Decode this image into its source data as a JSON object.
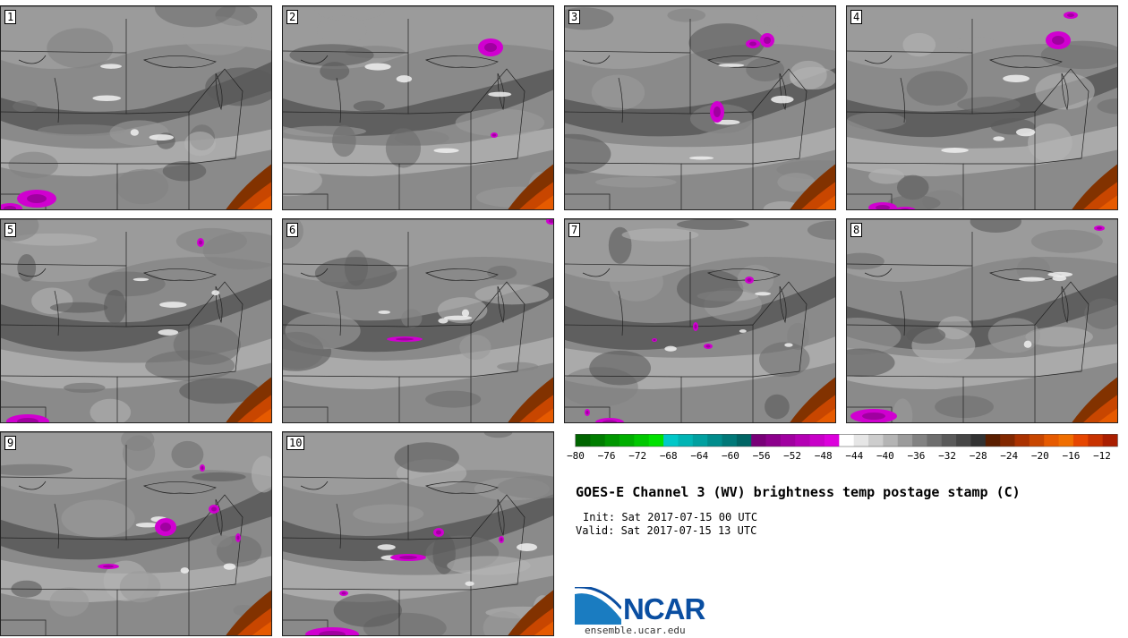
{
  "panels": [
    {
      "label": "1"
    },
    {
      "label": "2"
    },
    {
      "label": "3"
    },
    {
      "label": "4"
    },
    {
      "label": "5"
    },
    {
      "label": "6"
    },
    {
      "label": "7"
    },
    {
      "label": "8"
    },
    {
      "label": "9"
    },
    {
      "label": "10"
    }
  ],
  "colorbar": {
    "colors": [
      "#006400",
      "#007d00",
      "#009600",
      "#00af00",
      "#00c800",
      "#00e100",
      "#00c8c8",
      "#00b4b4",
      "#00a0a0",
      "#008c8c",
      "#007878",
      "#006464",
      "#780078",
      "#8c008c",
      "#a000a0",
      "#b400b4",
      "#c800c8",
      "#dc00dc",
      "#ffffff",
      "#e6e6e6",
      "#cdcdcd",
      "#b4b4b4",
      "#9b9b9b",
      "#828282",
      "#6e6e6e",
      "#5a5a5a",
      "#464646",
      "#323232",
      "#5a1e00",
      "#822800",
      "#aa3200",
      "#c84600",
      "#e65a00",
      "#f06e00",
      "#e64600",
      "#c83200",
      "#aa1e00"
    ],
    "ticks": [
      "−80",
      "−76",
      "−72",
      "−68",
      "−64",
      "−60",
      "−56",
      "−52",
      "−48",
      "−44",
      "−40",
      "−36",
      "−32",
      "−28",
      "−24",
      "−20",
      "−16",
      "−12"
    ]
  },
  "title": "GOES-E Channel 3 (WV) brightness temp postage stamp (C)",
  "init": "Init: Sat 2017-07-15 00 UTC",
  "valid": "Valid: Sat 2017-07-15 13 UTC",
  "logo": {
    "word": "NCAR",
    "site": "ensemble.ucar.edu",
    "color": "#0a4ea1"
  }
}
